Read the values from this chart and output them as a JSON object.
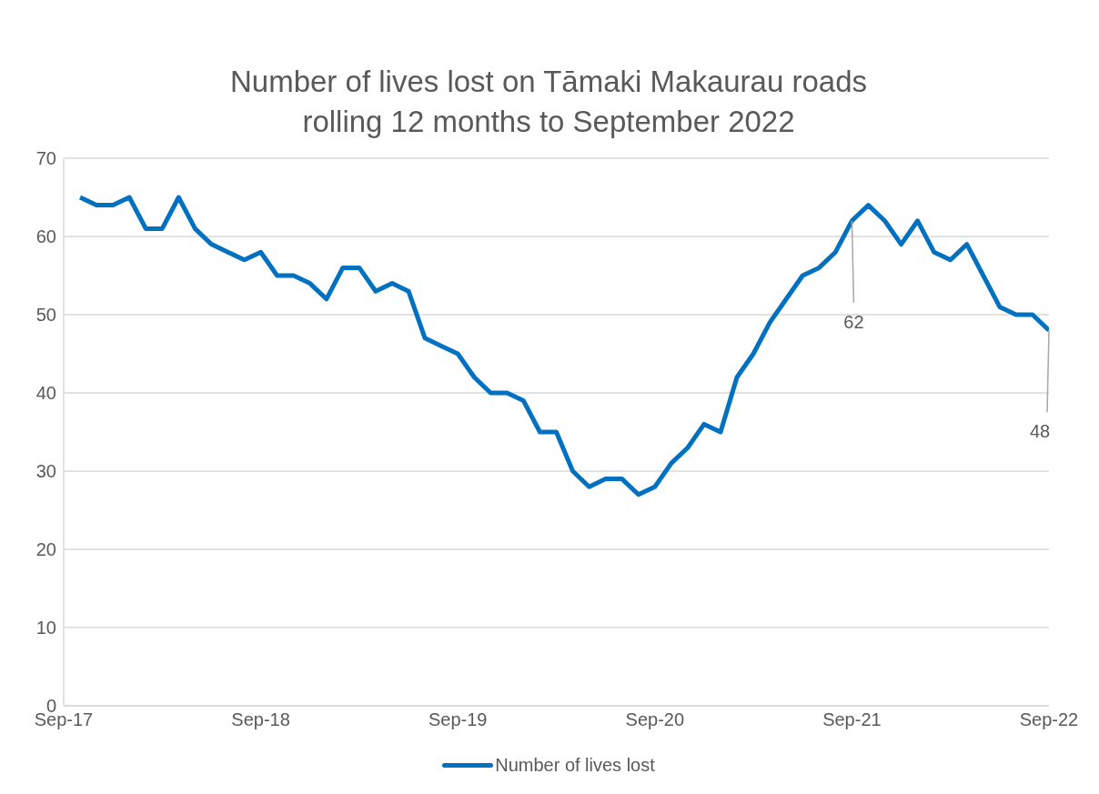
{
  "chart_data": {
    "type": "line",
    "title": "Number of lives lost on Tāmaki Makaurau roads",
    "subtitle": "rolling 12 months to September 2022",
    "x": [
      "2017-10",
      "2017-11",
      "2017-12",
      "2018-01",
      "2018-02",
      "2018-03",
      "2018-04",
      "2018-05",
      "2018-06",
      "2018-07",
      "2018-08",
      "2018-09",
      "2018-10",
      "2018-11",
      "2018-12",
      "2019-01",
      "2019-02",
      "2019-03",
      "2019-04",
      "2019-05",
      "2019-06",
      "2019-07",
      "2019-08",
      "2019-09",
      "2019-10",
      "2019-11",
      "2019-12",
      "2020-01",
      "2020-02",
      "2020-03",
      "2020-04",
      "2020-05",
      "2020-06",
      "2020-07",
      "2020-08",
      "2020-09",
      "2020-10",
      "2020-11",
      "2020-12",
      "2021-01",
      "2021-02",
      "2021-03",
      "2021-04",
      "2021-05",
      "2021-06",
      "2021-07",
      "2021-08",
      "2021-09",
      "2021-10",
      "2021-11",
      "2021-12",
      "2022-01",
      "2022-02",
      "2022-03",
      "2022-04",
      "2022-05",
      "2022-06",
      "2022-07",
      "2022-08",
      "2022-09"
    ],
    "series": [
      {
        "name": "Number of lives lost",
        "color": "#0070c0",
        "values": [
          65,
          64,
          64,
          65,
          61,
          61,
          65,
          61,
          59,
          58,
          57,
          58,
          55,
          55,
          54,
          52,
          56,
          56,
          53,
          54,
          53,
          47,
          46,
          45,
          42,
          40,
          40,
          39,
          35,
          35,
          30,
          28,
          29,
          29,
          27,
          28,
          31,
          33,
          36,
          35,
          42,
          45,
          49,
          52,
          55,
          56,
          58,
          62,
          64,
          62,
          59,
          62,
          58,
          57,
          59,
          55,
          51,
          50,
          50,
          48
        ]
      }
    ],
    "xlim": [
      "2017-09",
      "2022-09"
    ],
    "xticks": [
      {
        "value": "2017-09",
        "label": "Sep-17"
      },
      {
        "value": "2018-09",
        "label": "Sep-18"
      },
      {
        "value": "2019-09",
        "label": "Sep-19"
      },
      {
        "value": "2020-09",
        "label": "Sep-20"
      },
      {
        "value": "2021-09",
        "label": "Sep-21"
      },
      {
        "value": "2022-09",
        "label": "Sep-22"
      }
    ],
    "ylim": [
      0,
      70
    ],
    "yticks": [
      0,
      10,
      20,
      30,
      40,
      50,
      60,
      70
    ],
    "grid": "y",
    "legend": "bottom",
    "marker": "none",
    "line_style": "solid",
    "annotations": [
      {
        "text": "62",
        "x": "2021-09",
        "y": 62
      },
      {
        "text": "48",
        "x": "2022-09",
        "y": 48
      }
    ]
  }
}
